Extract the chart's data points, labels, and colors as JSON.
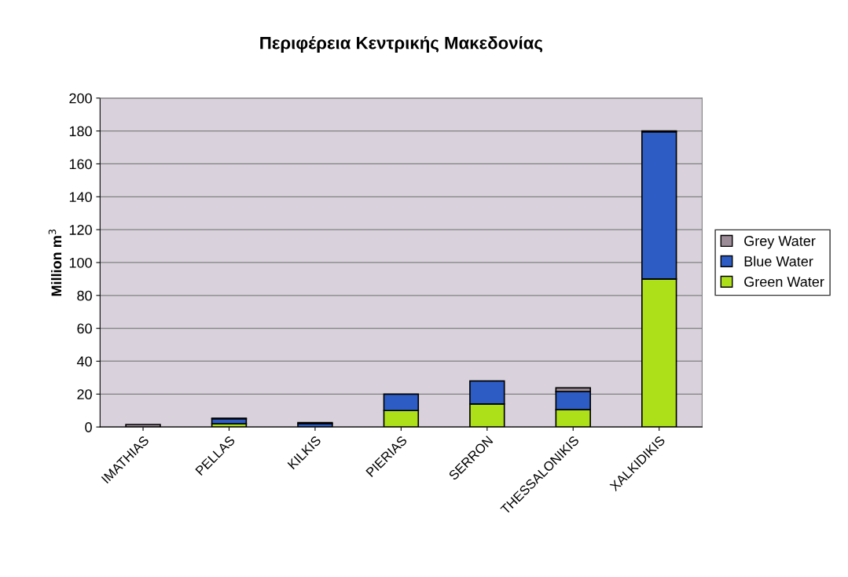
{
  "chart_data": {
    "type": "bar",
    "title": "Περιφέρεια Κεντρικής Μακεδονίας",
    "ylabel": "Million m$^{3}$",
    "categories": [
      "IMATHIAS",
      "PELLAS",
      "KILKIS",
      "PIERIAS",
      "SERRON",
      "THESSALONIKIS",
      "XALKIDIKIS"
    ],
    "stacked": true,
    "series": [
      {
        "name": "Green Water",
        "color": "#aee01a",
        "values": [
          null,
          2,
          null,
          10,
          14,
          10.5,
          90
        ]
      },
      {
        "name": "Blue Water",
        "color": "#2c5cc4",
        "values": [
          null,
          3,
          2,
          10,
          14,
          11,
          89.5
        ]
      },
      {
        "name": "Grey Water",
        "color": "#9c8c98",
        "values": [
          1.5,
          0.3,
          0.7,
          null,
          null,
          2.3,
          0.5
        ]
      }
    ],
    "ylim": [
      0,
      200
    ],
    "yticks": [
      0,
      20,
      40,
      60,
      80,
      100,
      120,
      140,
      160,
      180,
      200
    ],
    "grid": "y",
    "legend": "right"
  }
}
